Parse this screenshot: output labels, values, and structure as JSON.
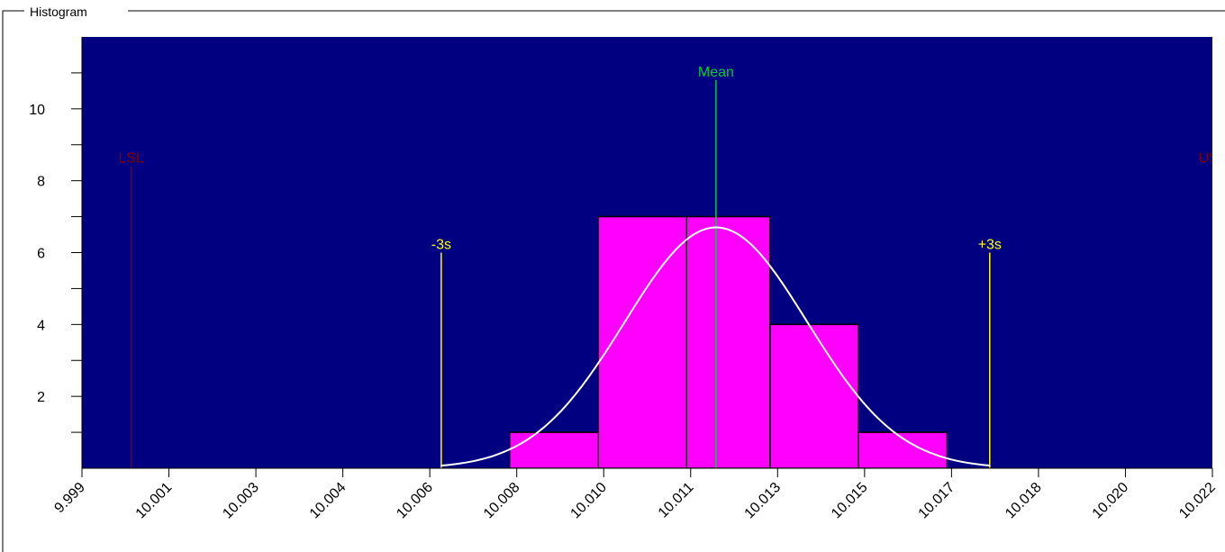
{
  "panel": {
    "title": "Histogram"
  },
  "colors": {
    "plot_bg": "#000080",
    "bar_fill": "#ff00ff",
    "bar_stroke": "#000000",
    "curve": "#ffffff",
    "mean": "#00cc33",
    "sigma": "#ffff00",
    "spec": "#800000"
  },
  "chart_data": {
    "type": "bar",
    "title": "Histogram",
    "xlabel": "",
    "ylabel": "",
    "xlim": [
      9.999,
      10.022
    ],
    "ylim": [
      0,
      12
    ],
    "x_ticks": [
      "9.999",
      "10.001",
      "10.003",
      "10.004",
      "10.006",
      "10.008",
      "10.010",
      "10.011",
      "10.013",
      "10.015",
      "10.017",
      "10.018",
      "10.020",
      "10.022"
    ],
    "y_ticks": [
      2,
      4,
      6,
      8,
      10
    ],
    "bins": [
      {
        "from": 10.0077,
        "to": 10.0095,
        "count": 1
      },
      {
        "from": 10.0095,
        "to": 10.0113,
        "count": 7
      },
      {
        "from": 10.0113,
        "to": 10.013,
        "count": 7
      },
      {
        "from": 10.013,
        "to": 10.0148,
        "count": 4
      },
      {
        "from": 10.0148,
        "to": 10.0166,
        "count": 1
      }
    ],
    "normal_curve": {
      "mean": 10.0119,
      "sigma": 0.00186,
      "peak": 6.7
    },
    "reference_lines": [
      {
        "label": "LSL",
        "x": 10.0,
        "height": 8.4,
        "kind": "spec"
      },
      {
        "label": "USL",
        "x": 10.022,
        "height": 8.4,
        "kind": "spec"
      },
      {
        "label": "-3s",
        "x": 10.00631,
        "height": 6.0,
        "kind": "sigma"
      },
      {
        "label": "+3s",
        "x": 10.01747,
        "height": 6.0,
        "kind": "sigma"
      },
      {
        "label": "Mean",
        "x": 10.0119,
        "height": 10.8,
        "kind": "mean"
      }
    ]
  }
}
